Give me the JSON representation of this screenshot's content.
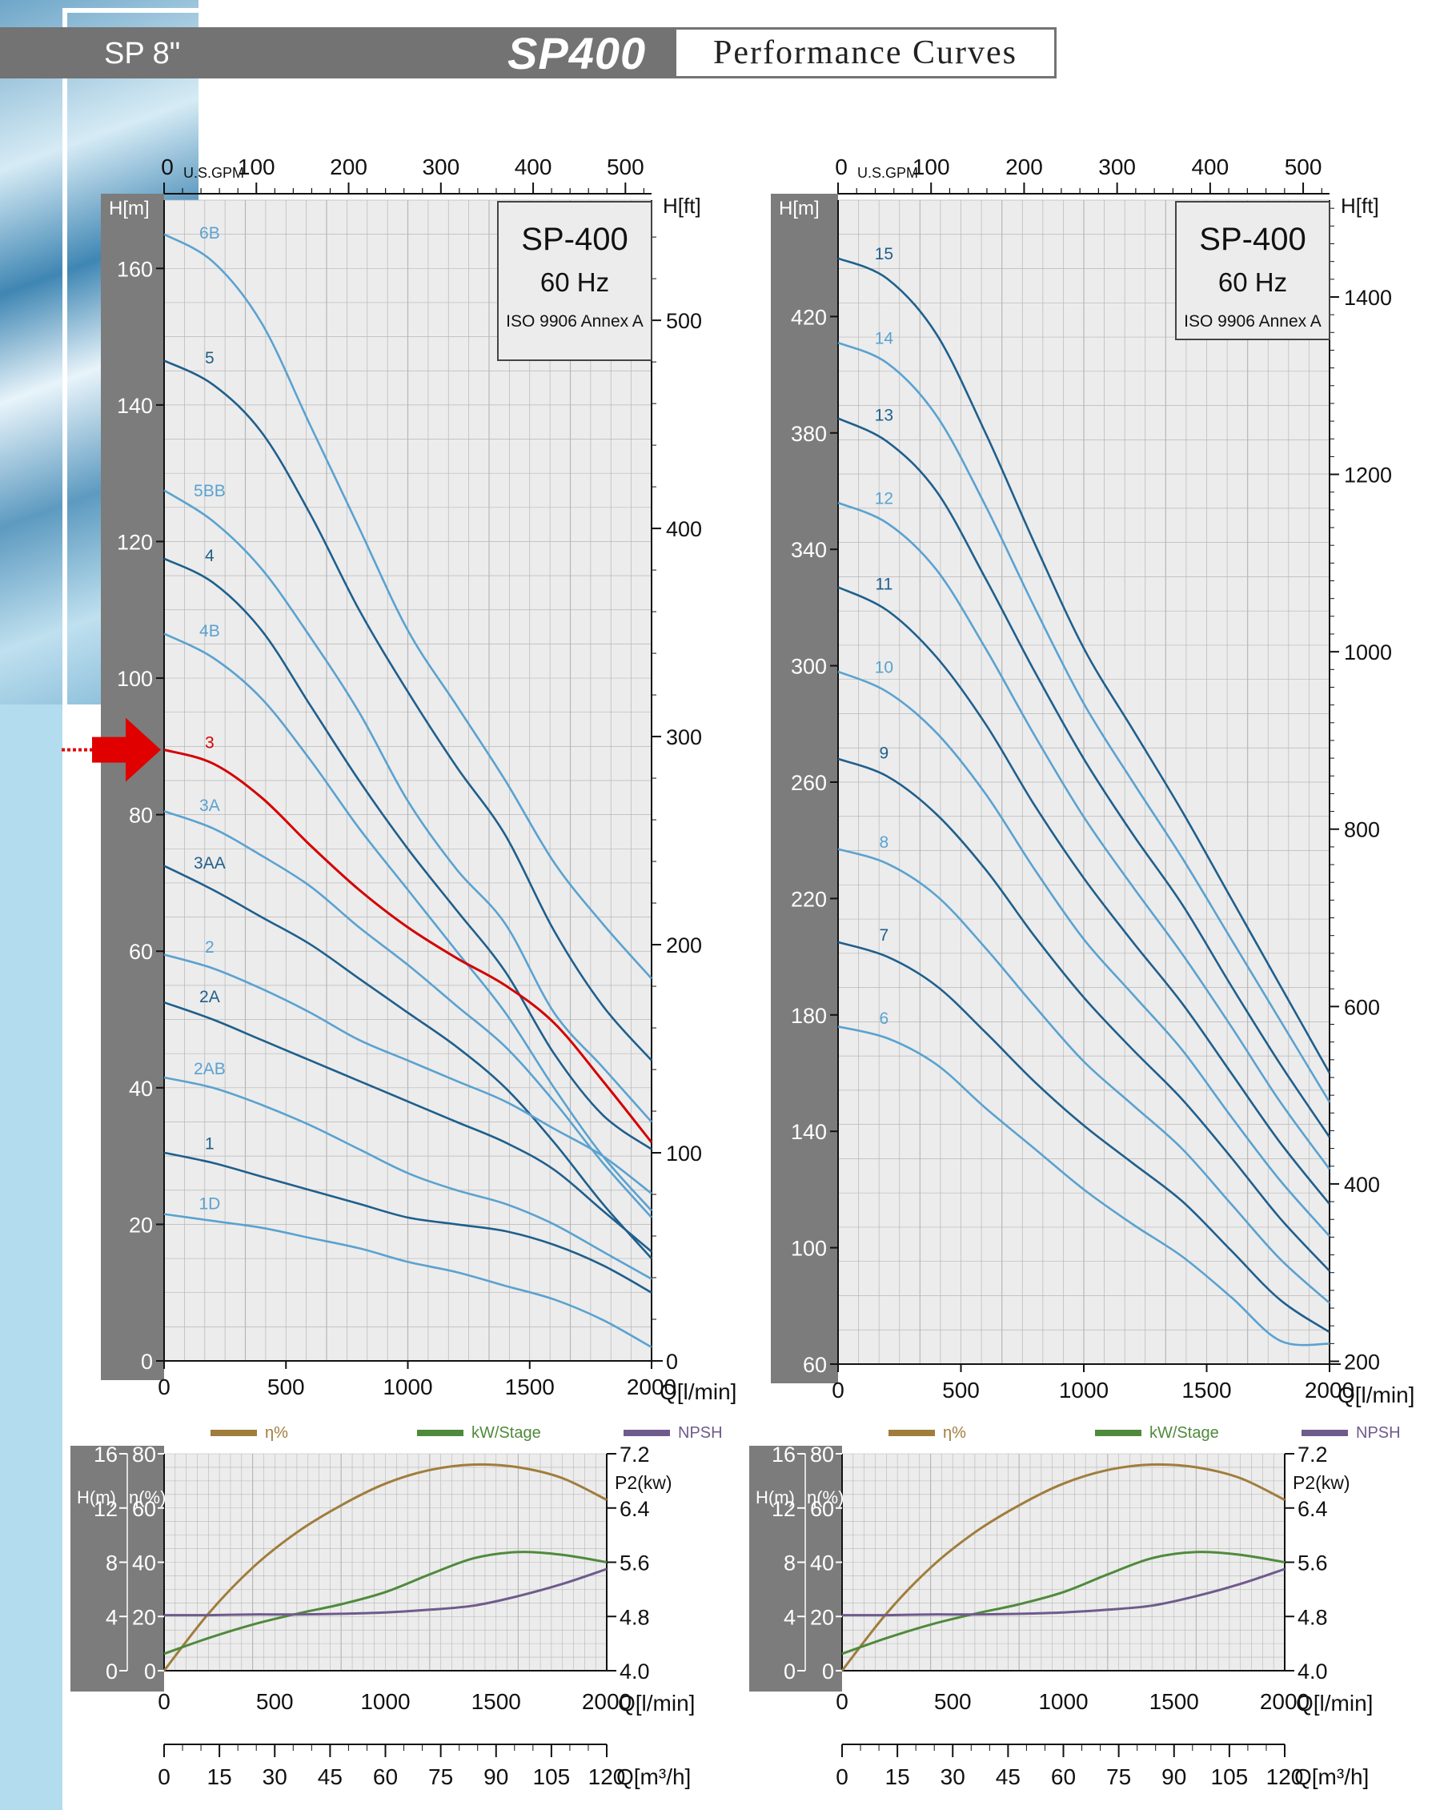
{
  "header": {
    "series": "SP 8\"",
    "model": "SP400",
    "title": "Performance Curves"
  },
  "colors": {
    "curve_light": "#5aa2d0",
    "curve_dark": "#1f5f8c",
    "highlight": "#d40000",
    "eta": "#a07d3c",
    "kw": "#4f8a3c",
    "npsh": "#6f5a8c",
    "axis_band": "#7c7c7c",
    "plot_bg": "#ececec"
  },
  "chart_data": [
    {
      "type": "line",
      "panel": "left",
      "info_box": [
        "SP-400",
        "60 Hz",
        "ISO 9906 Annex A"
      ],
      "xlabel": "Q[l/min]",
      "x_top_label": "U.S.GPM",
      "ylabel": "H[m]",
      "y2label": "H[ft]",
      "xlim": [
        0,
        2000
      ],
      "ylim": [
        0,
        170
      ],
      "xticks": [
        0,
        500,
        1000,
        1500,
        2000
      ],
      "x_top_ticks": [
        0,
        100,
        200,
        300,
        400,
        500
      ],
      "yticks": [
        0,
        20,
        40,
        60,
        80,
        100,
        120,
        140,
        160
      ],
      "y2ticks": [
        0,
        100,
        200,
        300,
        400,
        500
      ],
      "grid": true,
      "highlight_marker": "3",
      "x": [
        0,
        200,
        400,
        600,
        800,
        1000,
        1200,
        1400,
        1600,
        1800,
        2000
      ],
      "series": [
        {
          "name": "6B",
          "style": "light",
          "values": [
            165,
            161,
            152,
            137,
            122,
            107,
            96,
            85,
            73,
            64,
            56
          ]
        },
        {
          "name": "5",
          "style": "dark",
          "values": [
            146.5,
            143,
            136,
            124,
            110,
            98,
            87,
            77,
            63,
            52,
            44
          ]
        },
        {
          "name": "5BB",
          "style": "light",
          "values": [
            127.5,
            123,
            116,
            106,
            95,
            82,
            72,
            64,
            51,
            43,
            35
          ]
        },
        {
          "name": "4",
          "style": "dark",
          "values": [
            117.5,
            114,
            107,
            96,
            85,
            75,
            66,
            57,
            45,
            36,
            31
          ]
        },
        {
          "name": "4B",
          "style": "light",
          "values": [
            106.5,
            103,
            97,
            88,
            78,
            69,
            60,
            51,
            40,
            30,
            22
          ]
        },
        {
          "name": "3",
          "style": "red",
          "values": [
            89.5,
            87.5,
            82.5,
            75.5,
            69,
            63.5,
            59,
            55,
            49.5,
            41,
            32
          ]
        },
        {
          "name": "3A",
          "style": "light",
          "values": [
            80.5,
            78,
            74,
            69.5,
            63.5,
            58,
            52,
            46,
            38,
            29,
            21
          ]
        },
        {
          "name": "3AA",
          "style": "dark",
          "values": [
            72.5,
            69,
            65,
            61,
            56,
            51,
            46,
            40,
            32,
            23,
            15
          ]
        },
        {
          "name": "2",
          "style": "light",
          "values": [
            59.5,
            57.5,
            54.5,
            51,
            47,
            44,
            41,
            38,
            34,
            30,
            24.5
          ]
        },
        {
          "name": "2A",
          "style": "dark",
          "values": [
            52.5,
            50,
            47,
            44,
            41,
            38,
            35,
            32,
            28,
            22,
            16
          ]
        },
        {
          "name": "2AB",
          "style": "light",
          "values": [
            41.5,
            40,
            37.5,
            34.5,
            31,
            27.5,
            25,
            23,
            20,
            16,
            12
          ]
        },
        {
          "name": "1",
          "style": "dark",
          "values": [
            30.5,
            29,
            27,
            25,
            23,
            21,
            20,
            19,
            17,
            14,
            10
          ]
        },
        {
          "name": "1D",
          "style": "light",
          "values": [
            21.5,
            20.5,
            19.5,
            18,
            16.5,
            14.5,
            13,
            11,
            9,
            6,
            2
          ]
        }
      ],
      "flow_m3h_ticks": [
        0,
        15,
        30,
        45,
        60,
        75,
        90,
        105,
        120
      ],
      "flow_m3h_label": "Q[m³/h]"
    },
    {
      "type": "line",
      "panel": "right",
      "info_box": [
        "SP-400",
        "60 Hz",
        "ISO 9906 Annex A"
      ],
      "xlabel": "Q[l/min]",
      "x_top_label": "U.S.GPM",
      "ylabel": "H[m]",
      "y2label": "H[ft]",
      "xlim": [
        0,
        2000
      ],
      "ylim": [
        60,
        460
      ],
      "xticks": [
        0,
        500,
        1000,
        1500,
        2000
      ],
      "x_top_ticks": [
        0,
        100,
        200,
        300,
        400,
        500
      ],
      "yticks": [
        60,
        100,
        140,
        180,
        220,
        260,
        300,
        340,
        380,
        420
      ],
      "y2ticks": [
        200,
        400,
        600,
        800,
        1000,
        1200,
        1400
      ],
      "grid": true,
      "x": [
        0,
        200,
        400,
        600,
        800,
        1000,
        1200,
        1400,
        1600,
        1800,
        2000
      ],
      "series": [
        {
          "name": "15",
          "style": "dark",
          "values": [
            440,
            433,
            414,
            380,
            342,
            306,
            278,
            250,
            220,
            190,
            160
          ]
        },
        {
          "name": "14",
          "style": "light",
          "values": [
            411,
            404,
            386,
            355,
            320,
            287,
            260,
            234,
            206,
            178,
            150
          ]
        },
        {
          "name": "13",
          "style": "dark",
          "values": [
            385,
            377,
            360,
            330,
            298,
            268,
            242,
            218,
            190,
            163,
            138
          ]
        },
        {
          "name": "12",
          "style": "light",
          "values": [
            356,
            349,
            333,
            306,
            276,
            248,
            224,
            201,
            176,
            150,
            127
          ]
        },
        {
          "name": "11",
          "style": "dark",
          "values": [
            327,
            319,
            303,
            280,
            252,
            227,
            205,
            184,
            160,
            136,
            115
          ]
        },
        {
          "name": "10",
          "style": "light",
          "values": [
            298,
            291,
            277,
            256,
            230,
            206,
            187,
            168,
            145,
            123,
            104
          ]
        },
        {
          "name": "9",
          "style": "dark",
          "values": [
            268,
            262,
            249,
            230,
            207,
            186,
            168,
            151,
            131,
            110,
            92
          ]
        },
        {
          "name": "8",
          "style": "light",
          "values": [
            237,
            232,
            221,
            203,
            183,
            164,
            149,
            134,
            115,
            96,
            81
          ]
        },
        {
          "name": "7",
          "style": "dark",
          "values": [
            205,
            200,
            190,
            174,
            157,
            142,
            129,
            116,
            99,
            82,
            71
          ]
        },
        {
          "name": "6",
          "style": "light",
          "values": [
            176,
            172,
            163,
            148,
            134,
            120,
            108,
            97,
            83,
            68,
            67
          ]
        }
      ],
      "flow_m3h_ticks": [
        0,
        15,
        30,
        45,
        60,
        75,
        90,
        105,
        120
      ],
      "flow_m3h_label": "Q[m³/h]"
    },
    {
      "type": "line",
      "panel": "bottom-left",
      "legend": [
        "η%",
        "kW/Stage",
        "NPSH"
      ],
      "xlabel": "Q[l/min]",
      "y_npsh_label": "H(m)",
      "y_eta_label": "η(%)",
      "y2label": "P2(kw)",
      "xlim": [
        0,
        2000
      ],
      "xticks": [
        0,
        500,
        1000,
        1500,
        2000
      ],
      "npsh_ticks": [
        0,
        4,
        8,
        12,
        16
      ],
      "eta_ticks": [
        0,
        20,
        40,
        60,
        80
      ],
      "p2_ticks": [
        4.0,
        4.8,
        5.6,
        6.4,
        7.2
      ],
      "x": [
        0,
        200,
        400,
        600,
        800,
        1000,
        1200,
        1400,
        1600,
        1800,
        2000
      ],
      "series": [
        {
          "name": "η%",
          "axis": "eta",
          "values": [
            0,
            21,
            38,
            51,
            61,
            69,
            74,
            76,
            75,
            71,
            63
          ]
        },
        {
          "name": "kW/Stage",
          "axis": "p2",
          "values": [
            4.25,
            4.48,
            4.68,
            4.84,
            4.98,
            5.16,
            5.42,
            5.66,
            5.75,
            5.71,
            5.6
          ]
        },
        {
          "name": "NPSH",
          "axis": "npsh",
          "values": [
            4.1,
            4.1,
            4.15,
            4.15,
            4.2,
            4.3,
            4.5,
            4.8,
            5.5,
            6.4,
            7.5
          ]
        }
      ],
      "flow_m3h_ticks": [
        0,
        15,
        30,
        45,
        60,
        75,
        90,
        105,
        120
      ],
      "flow_m3h_label": "Q[m³/h]"
    },
    {
      "type": "line",
      "panel": "bottom-right",
      "legend": [
        "η%",
        "kW/Stage",
        "NPSH"
      ],
      "xlabel": "Q[l/min]",
      "y_npsh_label": "H(m)",
      "y_eta_label": "η(%)",
      "y2label": "P2(kw)",
      "xlim": [
        0,
        2000
      ],
      "xticks": [
        0,
        500,
        1000,
        1500,
        2000
      ],
      "npsh_ticks": [
        0,
        4,
        8,
        12,
        16
      ],
      "eta_ticks": [
        0,
        20,
        40,
        60,
        80
      ],
      "p2_ticks": [
        4.0,
        4.8,
        5.6,
        6.4,
        7.2
      ],
      "x": [
        0,
        200,
        400,
        600,
        800,
        1000,
        1200,
        1400,
        1600,
        1800,
        2000
      ],
      "series": [
        {
          "name": "η%",
          "axis": "eta",
          "values": [
            0,
            21,
            38,
            51,
            61,
            69,
            74,
            76,
            75,
            71,
            63
          ]
        },
        {
          "name": "kW/Stage",
          "axis": "p2",
          "values": [
            4.25,
            4.48,
            4.68,
            4.84,
            4.98,
            5.16,
            5.42,
            5.66,
            5.75,
            5.71,
            5.6
          ]
        },
        {
          "name": "NPSH",
          "axis": "npsh",
          "values": [
            4.1,
            4.1,
            4.15,
            4.15,
            4.2,
            4.3,
            4.5,
            4.8,
            5.5,
            6.4,
            7.5
          ]
        }
      ],
      "flow_m3h_ticks": [
        0,
        15,
        30,
        45,
        60,
        75,
        90,
        105,
        120
      ],
      "flow_m3h_label": "Q[m³/h]"
    }
  ]
}
